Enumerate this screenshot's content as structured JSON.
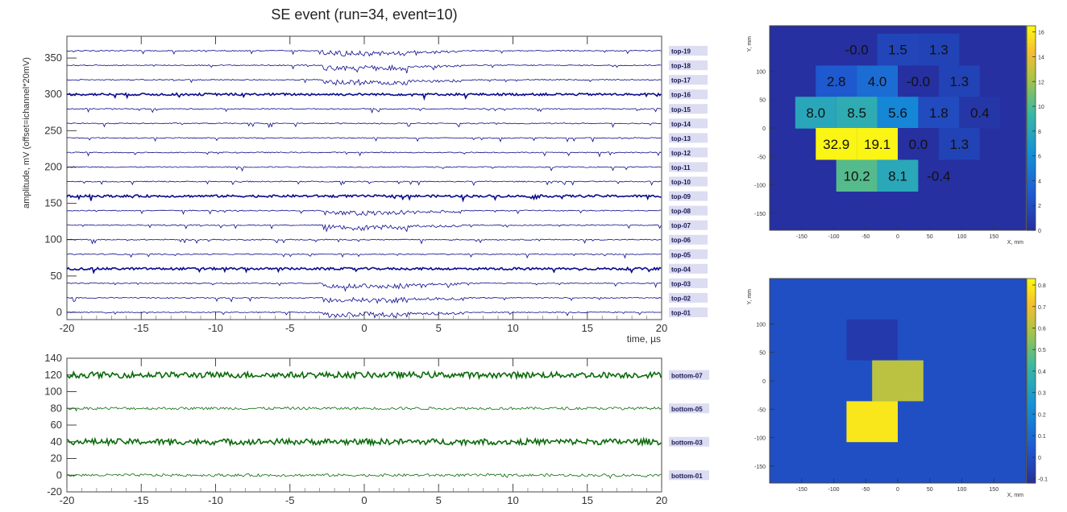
{
  "title": "SE event (run=34, event=10)",
  "colors": {
    "top_trace": "#0b0b8c",
    "bottom_trace": "#0b6b0b",
    "label_bg": "#dcdcf2"
  },
  "chart_data": [
    {
      "type": "line",
      "name_id": "top-waveforms",
      "title": "SE event (run=34, event=10)",
      "xlabel": "time, µs",
      "ylabel": "amplitude, mV (offset=ichannel*20mV)",
      "xlim": [
        -20,
        20
      ],
      "ylim": [
        -10,
        380
      ],
      "xticks": [
        "-20",
        "-15",
        "-10",
        "-5",
        "0",
        "5",
        "10",
        "15",
        "20"
      ],
      "yticks": [
        "0",
        "50",
        "100",
        "150",
        "200",
        "250",
        "300",
        "350"
      ],
      "channel_labels": [
        "top-01",
        "top-02",
        "top-03",
        "top-04",
        "top-05",
        "top-06",
        "top-07",
        "top-08",
        "top-09",
        "top-10",
        "top-11",
        "top-12",
        "top-13",
        "top-14",
        "top-15",
        "top-16",
        "top-17",
        "top-18",
        "top-19"
      ],
      "baselines": [
        0,
        20,
        40,
        60,
        80,
        100,
        120,
        140,
        160,
        180,
        200,
        220,
        240,
        260,
        280,
        300,
        320,
        340,
        360
      ],
      "pulse_window": [
        -2.8,
        6.5
      ],
      "pulse_channels": [
        "top-01",
        "top-02",
        "top-03",
        "top-07",
        "top-08",
        "top-17",
        "top-18",
        "top-19"
      ]
    },
    {
      "type": "line",
      "name_id": "bottom-waveforms",
      "xlim": [
        -20,
        20
      ],
      "ylim": [
        -20,
        140
      ],
      "xticks": [
        "-20",
        "-15",
        "-10",
        "-5",
        "0",
        "5",
        "10",
        "15",
        "20"
      ],
      "yticks": [
        "-20",
        "0",
        "20",
        "40",
        "60",
        "80",
        "100",
        "120",
        "140"
      ],
      "channel_labels": [
        "bottom-01",
        "bottom-03",
        "bottom-05",
        "bottom-07"
      ],
      "baselines": [
        0,
        40,
        80,
        120
      ]
    },
    {
      "type": "heatmap",
      "name_id": "top-map",
      "xlabel": "X, mm",
      "ylabel": "Y, mm",
      "xlim": [
        -200,
        200
      ],
      "ylim": [
        -180,
        180
      ],
      "xticks": [
        "-150",
        "-100",
        "-50",
        "0",
        "50",
        "100",
        "150"
      ],
      "yticks": [
        "-150",
        "-100",
        "-50",
        "0",
        "50",
        "100"
      ],
      "colorbar_ticks": [
        "0",
        "2",
        "4",
        "6",
        "8",
        "10",
        "12",
        "14",
        "16"
      ],
      "zlim": [
        0,
        16.5
      ],
      "cells": [
        {
          "x": -64,
          "y": 138,
          "label": "-0.0",
          "v": 0
        },
        {
          "x": 0,
          "y": 138,
          "label": "1.5",
          "v": 1.5
        },
        {
          "x": 64,
          "y": 138,
          "label": "1.3",
          "v": 1.3
        },
        {
          "x": -96,
          "y": 82,
          "label": "2.8",
          "v": 2.8
        },
        {
          "x": -32,
          "y": 82,
          "label": "4.0",
          "v": 4.0
        },
        {
          "x": 32,
          "y": 82,
          "label": "-0.0",
          "v": 0
        },
        {
          "x": 96,
          "y": 82,
          "label": "1.3",
          "v": 1.3
        },
        {
          "x": -128,
          "y": 27,
          "label": "8.0",
          "v": 8.0
        },
        {
          "x": -64,
          "y": 27,
          "label": "8.5",
          "v": 8.5
        },
        {
          "x": 0,
          "y": 27,
          "label": "5.6",
          "v": 5.6
        },
        {
          "x": 64,
          "y": 27,
          "label": "1.8",
          "v": 1.8
        },
        {
          "x": 128,
          "y": 27,
          "label": "0.4",
          "v": 0.4
        },
        {
          "x": -96,
          "y": -28,
          "label": "32.9",
          "v": 32.9
        },
        {
          "x": -32,
          "y": -28,
          "label": "19.1",
          "v": 19.1
        },
        {
          "x": 32,
          "y": -28,
          "label": "0.0",
          "v": 0
        },
        {
          "x": 96,
          "y": -28,
          "label": "1.3",
          "v": 1.3
        },
        {
          "x": -64,
          "y": -84,
          "label": "10.2",
          "v": 10.2
        },
        {
          "x": 0,
          "y": -84,
          "label": "8.1",
          "v": 8.1
        },
        {
          "x": 64,
          "y": -84,
          "label": "-0.4",
          "v": -0.4
        }
      ]
    },
    {
      "type": "heatmap",
      "name_id": "bottom-map",
      "xlabel": "X, mm",
      "ylabel": "Y, mm",
      "xlim": [
        -200,
        200
      ],
      "ylim": [
        -180,
        180
      ],
      "xticks": [
        "-150",
        "-100",
        "-50",
        "0",
        "50",
        "100",
        "150"
      ],
      "yticks": [
        "-150",
        "-100",
        "-50",
        "0",
        "50",
        "100"
      ],
      "colorbar_ticks": [
        "-0.1",
        "0",
        "0.1",
        "0.2",
        "0.3",
        "0.4",
        "0.5",
        "0.6",
        "0.7",
        "0.8"
      ],
      "zlim": [
        -0.12,
        0.83
      ],
      "background": 0,
      "cells": [
        {
          "x": -40,
          "y": 72,
          "v": -0.08
        },
        {
          "x": 0,
          "y": 0,
          "v": 0.62
        },
        {
          "x": -40,
          "y": -72,
          "v": 0.8
        }
      ]
    }
  ]
}
